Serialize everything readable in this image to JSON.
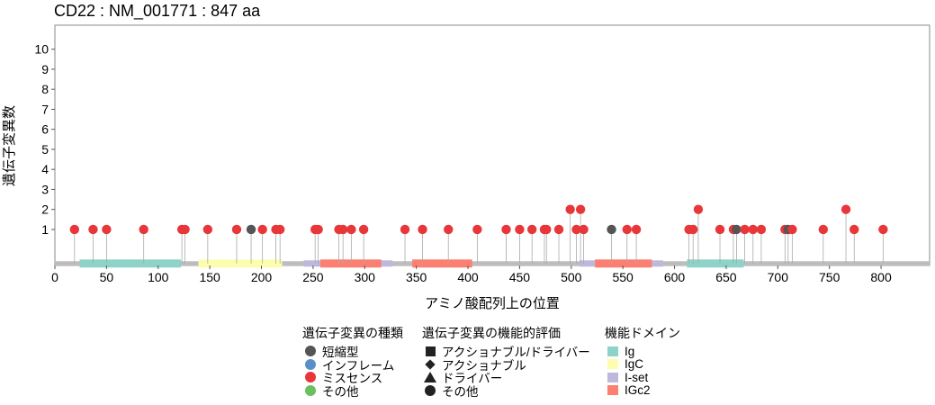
{
  "chart_data": {
    "type": "lollipop",
    "title": "CD22 : NM_001771 : 847 aa",
    "xlabel": "アミノ酸配列上の位置",
    "ylabel": "遺伝子変異数",
    "xlim": [
      0,
      847
    ],
    "ylim": [
      -0.8,
      11.2
    ],
    "x_ticks": [
      0,
      50,
      100,
      150,
      200,
      250,
      300,
      350,
      400,
      450,
      500,
      550,
      600,
      650,
      700,
      750,
      800
    ],
    "y_ticks": [
      1,
      2,
      3,
      4,
      5,
      6,
      7,
      8,
      9,
      10
    ],
    "protein_length": 847,
    "colors": {
      "truncating": "#555555",
      "inframe": "#5b8fc9",
      "missense": "#e8373a",
      "other": "#6abf5e",
      "backbone": "#bdbdbd",
      "stem": "#aaaaaa"
    },
    "domains": [
      {
        "name": "I-set",
        "start": 24,
        "end": 122,
        "color": "#bdb8dc",
        "layer": 0
      },
      {
        "name": "I-set",
        "start": 241,
        "end": 327,
        "color": "#bdb8dc",
        "layer": 0
      },
      {
        "name": "I-set",
        "start": 508,
        "end": 589,
        "color": "#bdb8dc",
        "layer": 0
      },
      {
        "name": "Ig",
        "start": 24,
        "end": 122,
        "color": "#8dd3c7",
        "layer": 1
      },
      {
        "name": "IgC",
        "start": 139,
        "end": 220,
        "color": "#fdfdb0",
        "layer": 1
      },
      {
        "name": "IGc2",
        "start": 257,
        "end": 316,
        "color": "#fb8072",
        "layer": 1
      },
      {
        "name": "IGc2",
        "start": 346,
        "end": 404,
        "color": "#fb8072",
        "layer": 1
      },
      {
        "name": "IGc2",
        "start": 523,
        "end": 578,
        "color": "#fb8072",
        "layer": 1
      },
      {
        "name": "Ig",
        "start": 612,
        "end": 667,
        "color": "#8dd3c7",
        "layer": 1
      }
    ],
    "mutations": [
      {
        "pos": 19,
        "count": 1,
        "type": "missense"
      },
      {
        "pos": 37,
        "count": 1,
        "type": "missense"
      },
      {
        "pos": 50,
        "count": 1,
        "type": "missense"
      },
      {
        "pos": 86,
        "count": 1,
        "type": "missense"
      },
      {
        "pos": 123,
        "count": 1,
        "type": "missense"
      },
      {
        "pos": 126,
        "count": 1,
        "type": "missense"
      },
      {
        "pos": 148,
        "count": 1,
        "type": "missense"
      },
      {
        "pos": 176,
        "count": 1,
        "type": "missense"
      },
      {
        "pos": 190,
        "count": 1,
        "type": "truncating"
      },
      {
        "pos": 201,
        "count": 1,
        "type": "missense"
      },
      {
        "pos": 214,
        "count": 1,
        "type": "missense"
      },
      {
        "pos": 218,
        "count": 1,
        "type": "missense"
      },
      {
        "pos": 252,
        "count": 1,
        "type": "missense"
      },
      {
        "pos": 255,
        "count": 1,
        "type": "missense"
      },
      {
        "pos": 275,
        "count": 1,
        "type": "missense"
      },
      {
        "pos": 279,
        "count": 1,
        "type": "missense"
      },
      {
        "pos": 287,
        "count": 1,
        "type": "missense"
      },
      {
        "pos": 299,
        "count": 1,
        "type": "missense"
      },
      {
        "pos": 339,
        "count": 1,
        "type": "missense"
      },
      {
        "pos": 356,
        "count": 1,
        "type": "missense"
      },
      {
        "pos": 381,
        "count": 1,
        "type": "missense"
      },
      {
        "pos": 409,
        "count": 1,
        "type": "missense"
      },
      {
        "pos": 437,
        "count": 1,
        "type": "missense"
      },
      {
        "pos": 450,
        "count": 1,
        "type": "missense"
      },
      {
        "pos": 462,
        "count": 1,
        "type": "missense"
      },
      {
        "pos": 474,
        "count": 1,
        "type": "missense"
      },
      {
        "pos": 476,
        "count": 1,
        "type": "missense"
      },
      {
        "pos": 488,
        "count": 1,
        "type": "missense"
      },
      {
        "pos": 499,
        "count": 2,
        "type": "missense"
      },
      {
        "pos": 505,
        "count": 1,
        "type": "missense"
      },
      {
        "pos": 509,
        "count": 2,
        "type": "missense"
      },
      {
        "pos": 512,
        "count": 1,
        "type": "missense"
      },
      {
        "pos": 539,
        "count": 1,
        "type": "truncating"
      },
      {
        "pos": 554,
        "count": 1,
        "type": "missense"
      },
      {
        "pos": 563,
        "count": 1,
        "type": "missense"
      },
      {
        "pos": 614,
        "count": 1,
        "type": "missense"
      },
      {
        "pos": 618,
        "count": 1,
        "type": "missense"
      },
      {
        "pos": 623,
        "count": 2,
        "type": "missense"
      },
      {
        "pos": 644,
        "count": 1,
        "type": "missense"
      },
      {
        "pos": 657,
        "count": 1,
        "type": "missense"
      },
      {
        "pos": 660,
        "count": 1,
        "type": "truncating"
      },
      {
        "pos": 668,
        "count": 1,
        "type": "missense"
      },
      {
        "pos": 676,
        "count": 1,
        "type": "missense"
      },
      {
        "pos": 684,
        "count": 1,
        "type": "missense"
      },
      {
        "pos": 707,
        "count": 1,
        "type": "missense"
      },
      {
        "pos": 710,
        "count": 1,
        "type": "truncating"
      },
      {
        "pos": 714,
        "count": 1,
        "type": "missense"
      },
      {
        "pos": 744,
        "count": 1,
        "type": "missense"
      },
      {
        "pos": 766,
        "count": 2,
        "type": "missense"
      },
      {
        "pos": 774,
        "count": 1,
        "type": "missense"
      },
      {
        "pos": 802,
        "count": 1,
        "type": "missense"
      }
    ]
  },
  "legend": {
    "mutation_type": {
      "title": "遺伝子変異の種類",
      "items": [
        {
          "label": "短縮型",
          "color": "#555555",
          "icon": "circle-icon"
        },
        {
          "label": "インフレーム",
          "color": "#5b8fc9",
          "icon": "circle-icon"
        },
        {
          "label": "ミスセンス",
          "color": "#e8373a",
          "icon": "circle-icon"
        },
        {
          "label": "その他",
          "color": "#6abf5e",
          "icon": "circle-icon"
        }
      ]
    },
    "functional_evaluation": {
      "title": "遺伝子変異の機能的評価",
      "items": [
        {
          "label": "アクショナブル/ドライバー",
          "icon": "square-icon"
        },
        {
          "label": "アクショナブル",
          "icon": "diamond-icon"
        },
        {
          "label": "ドライバー",
          "icon": "triangle-icon"
        },
        {
          "label": "その他",
          "icon": "circle-icon"
        }
      ]
    },
    "domain": {
      "title": "機能ドメイン",
      "items": [
        {
          "label": "Ig",
          "color": "#8dd3c7",
          "icon": "rect-icon"
        },
        {
          "label": "IgC",
          "color": "#fdfdb0",
          "icon": "rect-icon"
        },
        {
          "label": "I-set",
          "color": "#bdb8dc",
          "icon": "rect-icon"
        },
        {
          "label": "IGc2",
          "color": "#fb8072",
          "icon": "rect-icon"
        }
      ]
    }
  }
}
